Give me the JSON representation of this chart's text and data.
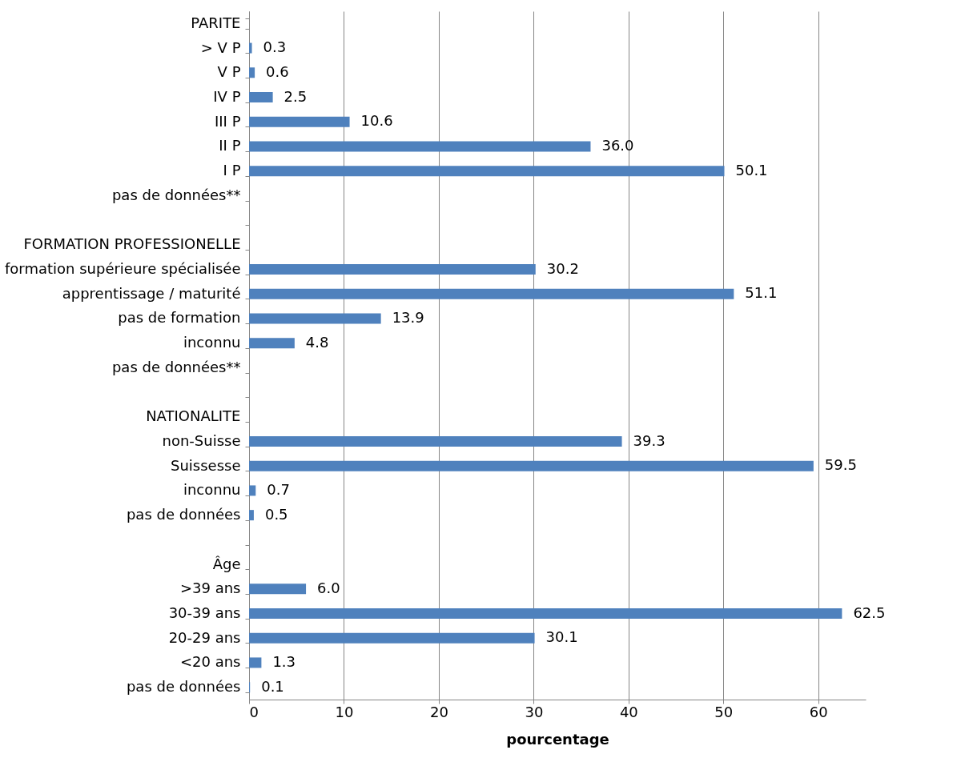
{
  "chart_data": {
    "type": "bar",
    "orientation": "horizontal",
    "xlabel": "pourcentage",
    "categories": [
      "PARITE",
      "> V P",
      "V P",
      "IV P",
      "III P",
      "II P",
      "I P",
      "pas de données**",
      null,
      "FORMATION PROFESSIONELLE",
      "formation supérieure spécialisée",
      "apprentissage / maturité",
      "pas de formation",
      "inconnu",
      "pas de données**",
      null,
      "NATIONALITE",
      "non-Suisse",
      "Suissesse",
      "inconnu",
      "pas de données",
      null,
      "Âge",
      ">39 ans",
      "30-39 ans",
      "20-29 ans",
      "<20 ans",
      "pas de données"
    ],
    "values": [
      null,
      0.3,
      0.6,
      2.5,
      10.6,
      36.0,
      50.1,
      null,
      null,
      null,
      30.2,
      51.1,
      13.9,
      4.8,
      null,
      null,
      null,
      39.3,
      59.5,
      0.7,
      0.5,
      null,
      null,
      6.0,
      62.5,
      30.1,
      1.3,
      0.1
    ],
    "value_labels": [
      null,
      "0.3",
      "0.6",
      "2.5",
      "10.6",
      "36.0",
      "50.1",
      null,
      null,
      null,
      "30.2",
      "51.1",
      "13.9",
      "4.8",
      null,
      null,
      null,
      "39.3",
      "59.5",
      "0.7",
      "0.5",
      null,
      null,
      "6.0",
      "62.5",
      "30.1",
      "1.3",
      "0.1"
    ],
    "color": "#4f81bd",
    "xlim": [
      0,
      65
    ],
    "xticks": [
      0,
      10,
      20,
      30,
      40,
      50,
      60
    ],
    "grid": "x"
  }
}
